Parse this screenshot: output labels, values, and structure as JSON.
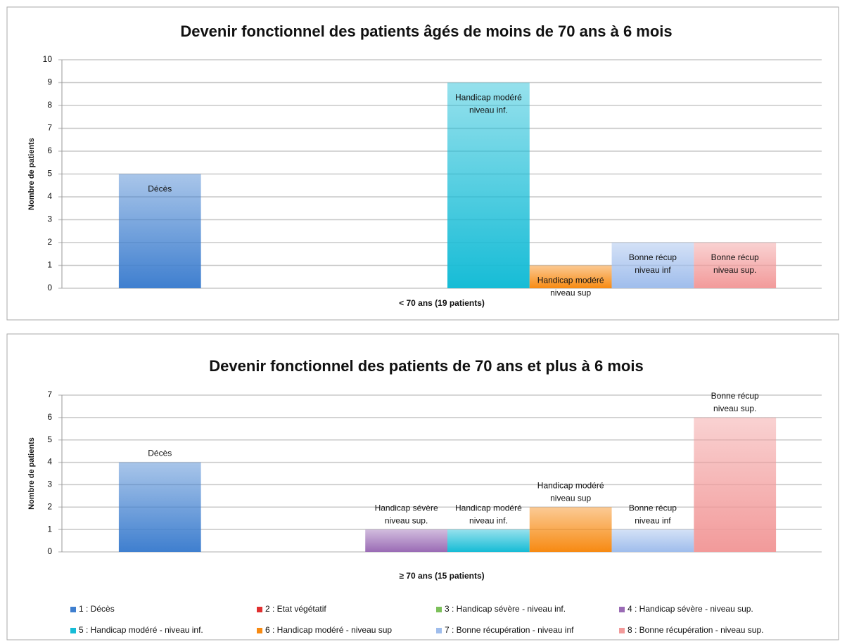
{
  "chart_data": [
    {
      "type": "bar",
      "title": "Devenir fonctionnel des patients  âgés de moins de 70 ans à 6 mois",
      "y_label": "Nombre de patients",
      "categories": [
        "< 70 ans (19 patients)"
      ],
      "ylim": [
        0,
        10
      ],
      "yticks": [
        0,
        1,
        2,
        3,
        4,
        5,
        6,
        7,
        8,
        9,
        10
      ],
      "grid": true,
      "label_position": "inside",
      "series": [
        {
          "color": "#3f7fcf",
          "values": [
            5
          ],
          "label_lines": [
            "Décès"
          ]
        },
        {
          "color": "#e03030",
          "values": [
            0
          ]
        },
        {
          "color": "#7cc05a",
          "values": [
            0
          ]
        },
        {
          "color": "#9a6bb5",
          "values": [
            0
          ]
        },
        {
          "color": "#16bcd6",
          "values": [
            9
          ],
          "label_lines": [
            "Handicap modéré",
            "niveau inf."
          ]
        },
        {
          "color": "#f78a12",
          "values": [
            1
          ],
          "label_lines": [
            "Handicap modéré",
            "niveau sup"
          ]
        },
        {
          "color": "#9fbdec",
          "values": [
            2
          ],
          "label_lines": [
            "Bonne récup",
            "niveau inf"
          ]
        },
        {
          "color": "#f29a9a",
          "values": [
            2
          ],
          "label_lines": [
            "Bonne récup",
            "niveau sup."
          ]
        }
      ]
    },
    {
      "type": "bar",
      "title": "Devenir fonctionnel des patients de 70 ans et plus à 6 mois",
      "y_label": "Nombre de patients",
      "categories": [
        "≥ 70 ans (15 patients)"
      ],
      "ylim": [
        0,
        7
      ],
      "yticks": [
        0,
        1,
        2,
        3,
        4,
        5,
        6,
        7
      ],
      "grid": true,
      "label_position": "above",
      "legend": "bottom",
      "series": [
        {
          "name": "1 : Décès",
          "color": "#3f7fcf",
          "values": [
            4
          ],
          "label_lines": [
            "Décès"
          ]
        },
        {
          "name": "2 : Etat végétatif",
          "color": "#e03030",
          "values": [
            0
          ]
        },
        {
          "name": "3 : Handicap sévère - niveau inf.",
          "color": "#7cc05a",
          "values": [
            0
          ]
        },
        {
          "name": "4 : Handicap sévère - niveau sup.",
          "color": "#9a6bb5",
          "values": [
            1
          ],
          "label_lines": [
            "Handicap sévère",
            "niveau sup."
          ]
        },
        {
          "name": "5 : Handicap modéré - niveau inf.",
          "color": "#16bcd6",
          "values": [
            1
          ],
          "label_lines": [
            "Handicap modéré",
            "niveau inf."
          ]
        },
        {
          "name": "6 : Handicap modéré - niveau sup",
          "color": "#f78a12",
          "values": [
            2
          ],
          "label_lines": [
            "Handicap modéré",
            "niveau sup"
          ]
        },
        {
          "name": "7 : Bonne récupération - niveau inf",
          "color": "#9fbdec",
          "values": [
            1
          ],
          "label_lines": [
            "Bonne récup",
            "niveau inf"
          ]
        },
        {
          "name": "8 : Bonne récupération - niveau sup.",
          "color": "#f29a9a",
          "values": [
            6
          ],
          "label_lines": [
            "Bonne récup",
            "niveau sup."
          ]
        }
      ]
    }
  ]
}
